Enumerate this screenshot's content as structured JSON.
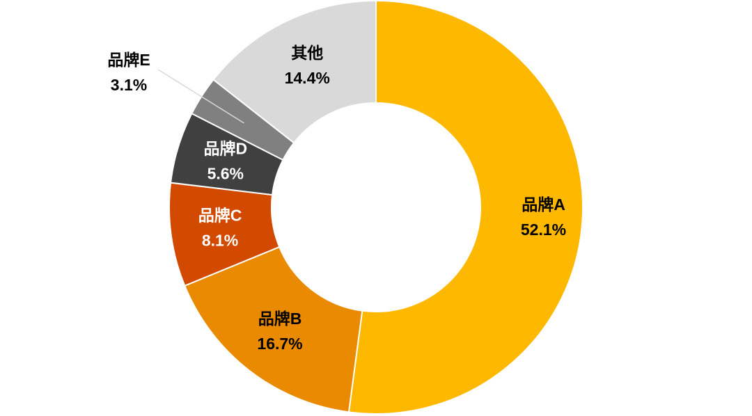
{
  "chart_data": {
    "type": "donut",
    "categories": [
      "品牌A",
      "品牌B",
      "品牌C",
      "品牌D",
      "品牌E",
      "其他"
    ],
    "values": [
      52.1,
      16.7,
      8.1,
      5.6,
      3.1,
      14.4
    ],
    "value_labels": [
      "52.1%",
      "16.7%",
      "8.1%",
      "5.6%",
      "3.1%",
      "14.4%"
    ],
    "colors": [
      "#FFB800",
      "#EA8A00",
      "#D24A00",
      "#404040",
      "#808080",
      "#D9D9D9"
    ]
  }
}
